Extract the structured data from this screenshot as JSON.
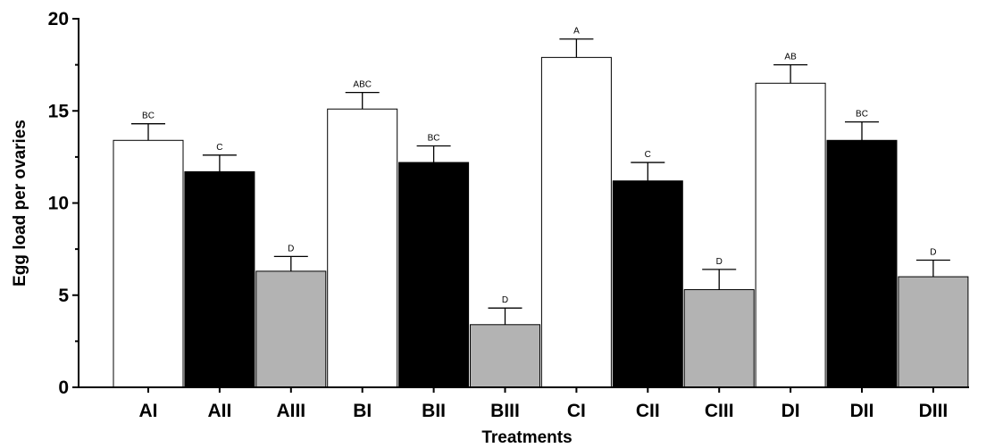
{
  "chart_data": {
    "type": "bar",
    "categories": [
      "AI",
      "AII",
      "AIII",
      "BI",
      "BII",
      "BIII",
      "CI",
      "CII",
      "CIII",
      "DI",
      "DII",
      "DIII"
    ],
    "values": [
      13.4,
      11.7,
      6.3,
      15.1,
      12.2,
      3.4,
      17.9,
      11.2,
      5.3,
      16.5,
      13.4,
      6.0
    ],
    "errors": [
      0.9,
      0.9,
      0.8,
      0.9,
      0.9,
      0.9,
      1.0,
      1.0,
      1.1,
      1.0,
      1.0,
      0.9
    ],
    "significance": [
      "BC",
      "C",
      "D",
      "ABC",
      "BC",
      "D",
      "A",
      "C",
      "D",
      "AB",
      "BC",
      "D"
    ],
    "bar_colors": [
      "#ffffff",
      "#000000",
      "#b3b3b3",
      "#ffffff",
      "#000000",
      "#b3b3b3",
      "#ffffff",
      "#000000",
      "#b3b3b3",
      "#ffffff",
      "#000000",
      "#b3b3b3"
    ],
    "xlabel": "Treatments",
    "ylabel": "Egg load per ovaries",
    "ylim": [
      0,
      20
    ],
    "yticks": [
      0,
      5,
      10,
      15,
      20
    ],
    "grid": false
  }
}
